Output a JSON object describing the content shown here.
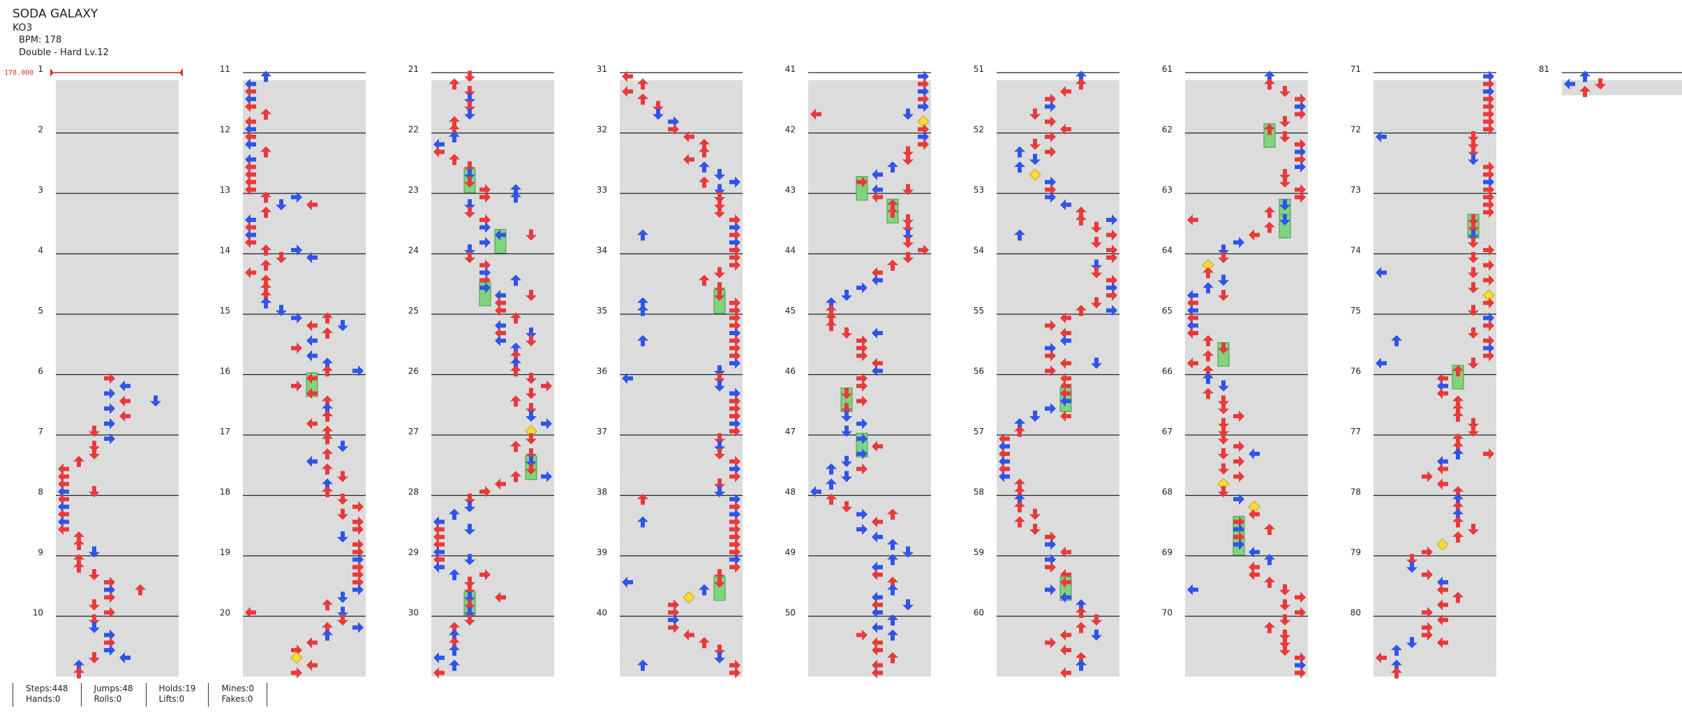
{
  "song": {
    "title": "SODA GALAXY",
    "artist": "KO3",
    "bpm_text": "BPM: 178",
    "difficulty_text": "Double - Hard  Lv.12"
  },
  "timing": {
    "bpm_marker_label": "178.000",
    "color": "#e62e2e"
  },
  "colors": {
    "red_arrow": "#e83a3a",
    "blue_arrow": "#2f55e8",
    "hold_body": "#7fd47f",
    "mine": "#f4dd3a",
    "stripe": "#dcdcdc"
  },
  "measures": [
    "1",
    "2",
    "3",
    "4",
    "5",
    "6",
    "7",
    "8",
    "9",
    "10",
    "11",
    "12",
    "13",
    "14",
    "15",
    "16",
    "17",
    "18",
    "19",
    "20",
    "21",
    "22",
    "23",
    "24",
    "25",
    "26",
    "27",
    "28",
    "29",
    "30",
    "31",
    "32",
    "33",
    "34",
    "35",
    "36",
    "37",
    "38",
    "39",
    "40",
    "41",
    "42",
    "43",
    "44",
    "45",
    "46",
    "47",
    "48",
    "49",
    "50",
    "51",
    "52",
    "53",
    "54",
    "55",
    "56",
    "57",
    "58",
    "59",
    "60",
    "61",
    "62",
    "63",
    "64",
    "65",
    "66",
    "67",
    "68",
    "69",
    "70",
    "71",
    "72",
    "73",
    "74",
    "75",
    "76",
    "77",
    "78",
    "79",
    "80",
    "81"
  ],
  "stats": {
    "steps": "Steps:448",
    "hands": "Hands:0",
    "jumps": "Jumps:48",
    "rolls": "Rolls:0",
    "holds": "Holds:19",
    "lifts": "Lifts:0",
    "mines": "Mines:0",
    "fakes": "Fakes:0"
  }
}
